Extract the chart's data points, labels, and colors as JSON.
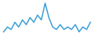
{
  "values": [
    2,
    3,
    2.5,
    4,
    3,
    4.5,
    3.5,
    5,
    4,
    5.5,
    4.5,
    8,
    5,
    3,
    2.5,
    3.5,
    2.5,
    3,
    2.5,
    3.5,
    2,
    3,
    2.5,
    4
  ],
  "line_color": "#3a9fd5",
  "background_color": "#ffffff",
  "linewidth": 1.1
}
